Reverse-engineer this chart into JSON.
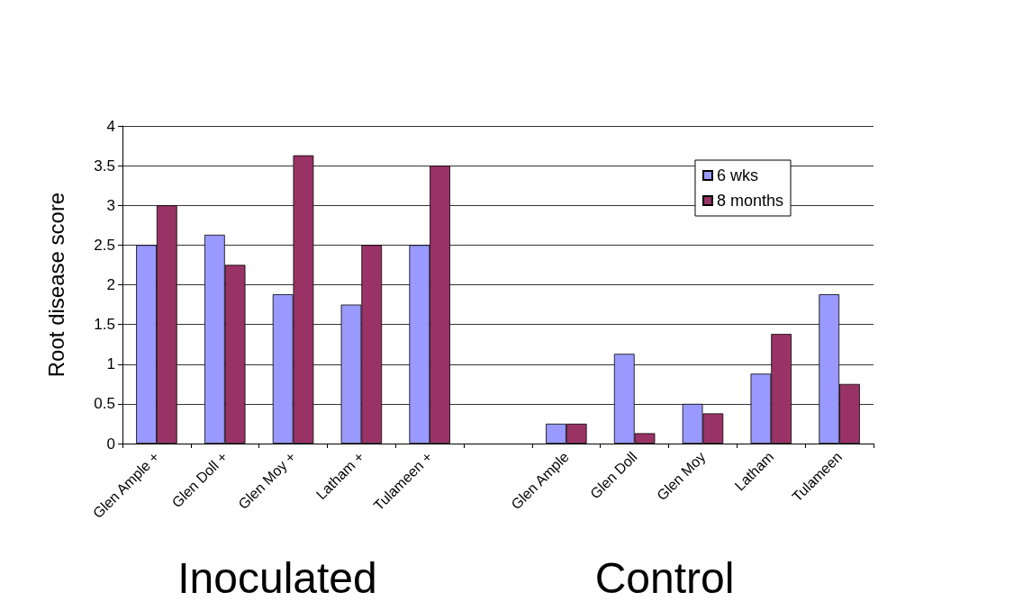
{
  "chart_data": {
    "type": "bar",
    "ylabel": "Root disease score",
    "categories": [
      "Glen Ample +",
      "Glen Doll +",
      "Glen Moy +",
      "Latham +",
      "Tulameen +",
      null,
      "Glen Ample",
      "Glen Doll",
      "Glen Moy",
      "Latham",
      "Tulameen"
    ],
    "series": [
      {
        "name": "6 wks",
        "color": "#9999ff",
        "values": [
          2.5,
          2.63,
          1.88,
          1.75,
          2.5,
          null,
          0.25,
          1.13,
          0.5,
          0.88,
          1.88
        ]
      },
      {
        "name": "8 months",
        "color": "#993366",
        "values": [
          3.0,
          2.25,
          3.63,
          2.5,
          3.5,
          null,
          0.25,
          0.13,
          0.38,
          1.38,
          0.75
        ]
      }
    ],
    "ylim": [
      0,
      4
    ],
    "yticks": [
      0,
      0.5,
      1,
      1.5,
      2,
      2.5,
      3,
      3.5,
      4
    ],
    "grid": "y",
    "legend": "top right",
    "annotations": [
      "Inoculated",
      "Control"
    ]
  }
}
